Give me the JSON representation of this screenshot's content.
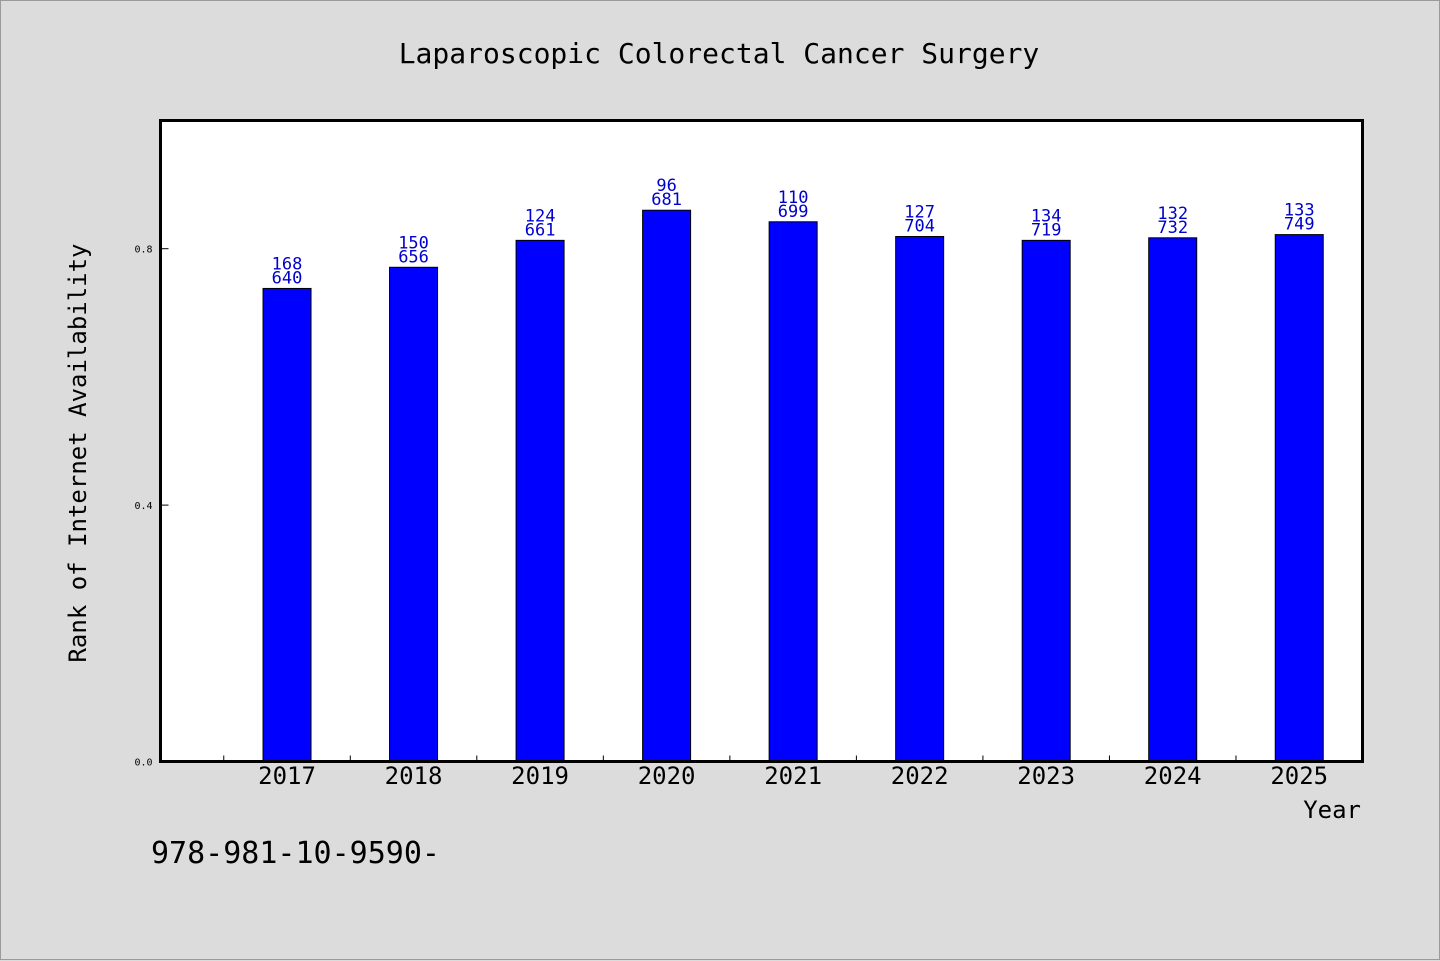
{
  "chart_data": {
    "type": "bar",
    "title": "Laparoscopic Colorectal Cancer Surgery",
    "xlabel": "Year",
    "ylabel": "Rank of Internet Availability",
    "categories": [
      "2017",
      "2018",
      "2019",
      "2020",
      "2021",
      "2022",
      "2023",
      "2024",
      "2025"
    ],
    "values": [
      0.738,
      0.771,
      0.813,
      0.86,
      0.842,
      0.819,
      0.813,
      0.817,
      0.822
    ],
    "labels_top": [
      "168",
      "150",
      "124",
      "96",
      "110",
      "127",
      "134",
      "132",
      "133"
    ],
    "labels_bottom": [
      "640",
      "656",
      "661",
      "681",
      "699",
      "704",
      "719",
      "732",
      "749"
    ],
    "yticks": [
      "0.0",
      "0.4",
      "0.8"
    ],
    "ytick_values": [
      0.0,
      0.4,
      0.8
    ],
    "ylim": [
      0,
      1.0
    ],
    "xlim": [
      2016,
      2025.5
    ],
    "grid": false,
    "bar_color": "#0000ff",
    "label_color": "#0000cc"
  },
  "footer_text": "978-981-10-9590-"
}
